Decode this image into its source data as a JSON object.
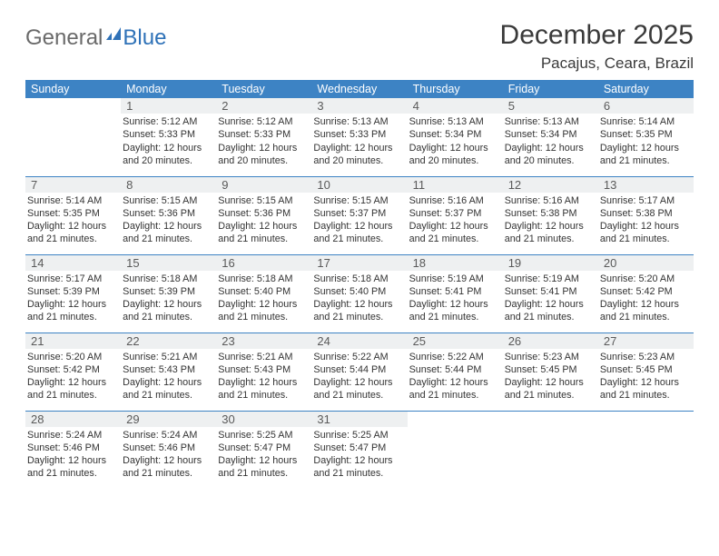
{
  "brand": {
    "part1": "General",
    "part2": "Blue"
  },
  "title": "December 2025",
  "location": "Pacajus, Ceara, Brazil",
  "colors": {
    "header_bg": "#3d83c4",
    "header_text": "#ffffff",
    "daynum_bg": "#eef0f1",
    "accent": "#2f72b8",
    "text": "#333333"
  },
  "day_headers": [
    "Sunday",
    "Monday",
    "Tuesday",
    "Wednesday",
    "Thursday",
    "Friday",
    "Saturday"
  ],
  "weeks": [
    [
      {
        "n": "",
        "lines": [
          "",
          "",
          "",
          ""
        ],
        "empty": true
      },
      {
        "n": "1",
        "lines": [
          "Sunrise: 5:12 AM",
          "Sunset: 5:33 PM",
          "Daylight: 12 hours",
          "and 20 minutes."
        ]
      },
      {
        "n": "2",
        "lines": [
          "Sunrise: 5:12 AM",
          "Sunset: 5:33 PM",
          "Daylight: 12 hours",
          "and 20 minutes."
        ]
      },
      {
        "n": "3",
        "lines": [
          "Sunrise: 5:13 AM",
          "Sunset: 5:33 PM",
          "Daylight: 12 hours",
          "and 20 minutes."
        ]
      },
      {
        "n": "4",
        "lines": [
          "Sunrise: 5:13 AM",
          "Sunset: 5:34 PM",
          "Daylight: 12 hours",
          "and 20 minutes."
        ]
      },
      {
        "n": "5",
        "lines": [
          "Sunrise: 5:13 AM",
          "Sunset: 5:34 PM",
          "Daylight: 12 hours",
          "and 20 minutes."
        ]
      },
      {
        "n": "6",
        "lines": [
          "Sunrise: 5:14 AM",
          "Sunset: 5:35 PM",
          "Daylight: 12 hours",
          "and 21 minutes."
        ]
      }
    ],
    [
      {
        "n": "7",
        "lines": [
          "Sunrise: 5:14 AM",
          "Sunset: 5:35 PM",
          "Daylight: 12 hours",
          "and 21 minutes."
        ]
      },
      {
        "n": "8",
        "lines": [
          "Sunrise: 5:15 AM",
          "Sunset: 5:36 PM",
          "Daylight: 12 hours",
          "and 21 minutes."
        ]
      },
      {
        "n": "9",
        "lines": [
          "Sunrise: 5:15 AM",
          "Sunset: 5:36 PM",
          "Daylight: 12 hours",
          "and 21 minutes."
        ]
      },
      {
        "n": "10",
        "lines": [
          "Sunrise: 5:15 AM",
          "Sunset: 5:37 PM",
          "Daylight: 12 hours",
          "and 21 minutes."
        ]
      },
      {
        "n": "11",
        "lines": [
          "Sunrise: 5:16 AM",
          "Sunset: 5:37 PM",
          "Daylight: 12 hours",
          "and 21 minutes."
        ]
      },
      {
        "n": "12",
        "lines": [
          "Sunrise: 5:16 AM",
          "Sunset: 5:38 PM",
          "Daylight: 12 hours",
          "and 21 minutes."
        ]
      },
      {
        "n": "13",
        "lines": [
          "Sunrise: 5:17 AM",
          "Sunset: 5:38 PM",
          "Daylight: 12 hours",
          "and 21 minutes."
        ]
      }
    ],
    [
      {
        "n": "14",
        "lines": [
          "Sunrise: 5:17 AM",
          "Sunset: 5:39 PM",
          "Daylight: 12 hours",
          "and 21 minutes."
        ]
      },
      {
        "n": "15",
        "lines": [
          "Sunrise: 5:18 AM",
          "Sunset: 5:39 PM",
          "Daylight: 12 hours",
          "and 21 minutes."
        ]
      },
      {
        "n": "16",
        "lines": [
          "Sunrise: 5:18 AM",
          "Sunset: 5:40 PM",
          "Daylight: 12 hours",
          "and 21 minutes."
        ]
      },
      {
        "n": "17",
        "lines": [
          "Sunrise: 5:18 AM",
          "Sunset: 5:40 PM",
          "Daylight: 12 hours",
          "and 21 minutes."
        ]
      },
      {
        "n": "18",
        "lines": [
          "Sunrise: 5:19 AM",
          "Sunset: 5:41 PM",
          "Daylight: 12 hours",
          "and 21 minutes."
        ]
      },
      {
        "n": "19",
        "lines": [
          "Sunrise: 5:19 AM",
          "Sunset: 5:41 PM",
          "Daylight: 12 hours",
          "and 21 minutes."
        ]
      },
      {
        "n": "20",
        "lines": [
          "Sunrise: 5:20 AM",
          "Sunset: 5:42 PM",
          "Daylight: 12 hours",
          "and 21 minutes."
        ]
      }
    ],
    [
      {
        "n": "21",
        "lines": [
          "Sunrise: 5:20 AM",
          "Sunset: 5:42 PM",
          "Daylight: 12 hours",
          "and 21 minutes."
        ]
      },
      {
        "n": "22",
        "lines": [
          "Sunrise: 5:21 AM",
          "Sunset: 5:43 PM",
          "Daylight: 12 hours",
          "and 21 minutes."
        ]
      },
      {
        "n": "23",
        "lines": [
          "Sunrise: 5:21 AM",
          "Sunset: 5:43 PM",
          "Daylight: 12 hours",
          "and 21 minutes."
        ]
      },
      {
        "n": "24",
        "lines": [
          "Sunrise: 5:22 AM",
          "Sunset: 5:44 PM",
          "Daylight: 12 hours",
          "and 21 minutes."
        ]
      },
      {
        "n": "25",
        "lines": [
          "Sunrise: 5:22 AM",
          "Sunset: 5:44 PM",
          "Daylight: 12 hours",
          "and 21 minutes."
        ]
      },
      {
        "n": "26",
        "lines": [
          "Sunrise: 5:23 AM",
          "Sunset: 5:45 PM",
          "Daylight: 12 hours",
          "and 21 minutes."
        ]
      },
      {
        "n": "27",
        "lines": [
          "Sunrise: 5:23 AM",
          "Sunset: 5:45 PM",
          "Daylight: 12 hours",
          "and 21 minutes."
        ]
      }
    ],
    [
      {
        "n": "28",
        "lines": [
          "Sunrise: 5:24 AM",
          "Sunset: 5:46 PM",
          "Daylight: 12 hours",
          "and 21 minutes."
        ]
      },
      {
        "n": "29",
        "lines": [
          "Sunrise: 5:24 AM",
          "Sunset: 5:46 PM",
          "Daylight: 12 hours",
          "and 21 minutes."
        ]
      },
      {
        "n": "30",
        "lines": [
          "Sunrise: 5:25 AM",
          "Sunset: 5:47 PM",
          "Daylight: 12 hours",
          "and 21 minutes."
        ]
      },
      {
        "n": "31",
        "lines": [
          "Sunrise: 5:25 AM",
          "Sunset: 5:47 PM",
          "Daylight: 12 hours",
          "and 21 minutes."
        ]
      },
      {
        "n": "",
        "lines": [
          "",
          "",
          "",
          ""
        ],
        "empty": true
      },
      {
        "n": "",
        "lines": [
          "",
          "",
          "",
          ""
        ],
        "empty": true
      },
      {
        "n": "",
        "lines": [
          "",
          "",
          "",
          ""
        ],
        "empty": true
      }
    ]
  ]
}
